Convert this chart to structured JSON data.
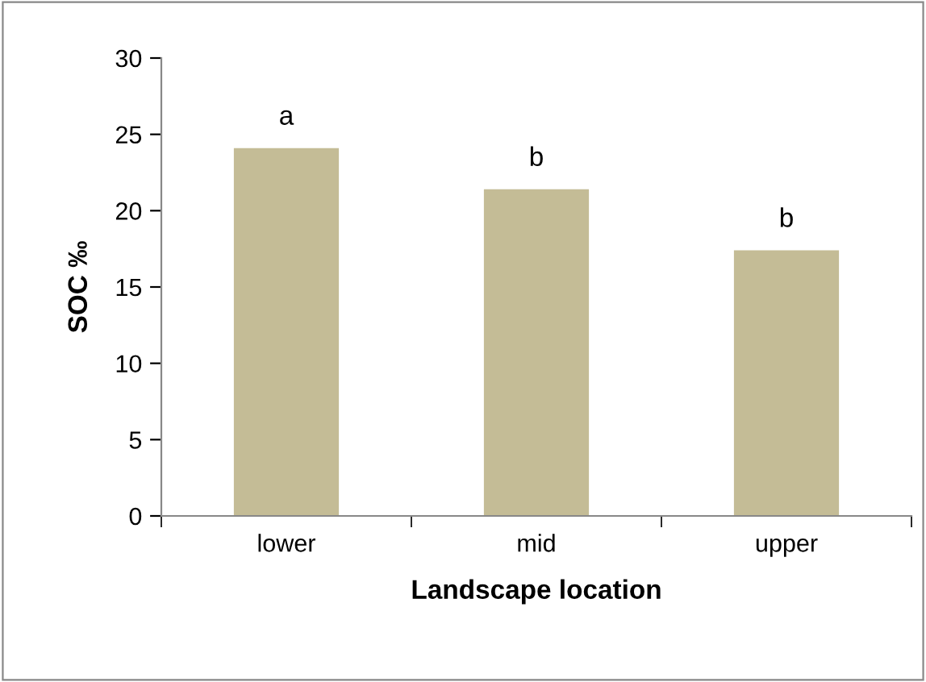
{
  "chart_data": {
    "type": "bar",
    "xlabel": "Landscape location",
    "ylabel": "SOC ‰",
    "categories": [
      "lower",
      "mid",
      "upper"
    ],
    "values": [
      24.1,
      21.4,
      17.4
    ],
    "color": "#c4bc96",
    "ylim": [
      0,
      30
    ],
    "yticks": [
      0,
      5,
      10,
      15,
      20,
      25,
      30
    ],
    "grid": false,
    "legend": false,
    "annotations": [
      {
        "text": "a",
        "x": "lower",
        "y": 24.1
      },
      {
        "text": "b",
        "x": "mid",
        "y": 21.4
      },
      {
        "text": "b",
        "x": "upper",
        "y": 17.4
      }
    ]
  }
}
